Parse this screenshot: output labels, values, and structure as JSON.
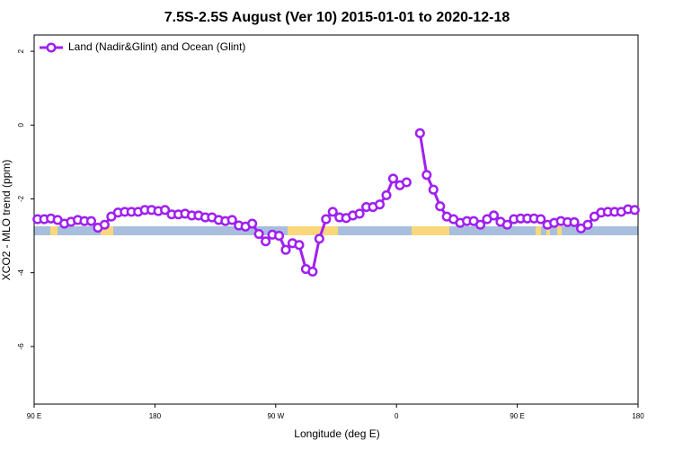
{
  "chart_data": {
    "type": "line",
    "title": "7.5S-2.5S August (Ver 10)   2015-01-01 to 2020-12-18",
    "x_label": "Longitude (deg E)",
    "y_label": "XCO2 - MLO trend (ppm)",
    "xlim": [
      90,
      540
    ],
    "xticks": [
      {
        "value": 90,
        "label": "90 E"
      },
      180,
      {
        "value": 270,
        "label": "90 W"
      },
      {
        "value": 360,
        "label": "0"
      },
      {
        "value": 450,
        "label": "90 E"
      },
      {
        "value": 540,
        "label": "180"
      }
    ],
    "ylim": [
      -7.56,
      2.44
    ],
    "yticks": [
      2,
      0,
      -2,
      -4,
      -6
    ],
    "legend": "top-left",
    "x": [
      92.5,
      97.5,
      102.5,
      107.5,
      112.5,
      117.5,
      122.5,
      127.5,
      132.5,
      137.5,
      142.5,
      147.5,
      152.5,
      157.5,
      162.5,
      167.5,
      172.5,
      177.5,
      182.5,
      187.5,
      192.5,
      197.5,
      202.5,
      207.5,
      212.5,
      217.5,
      222.5,
      227.5,
      232.5,
      237.5,
      242.5,
      247.5,
      252.5,
      257.5,
      262.5,
      267.5,
      272.5,
      277.5,
      282.5,
      287.5,
      292.5,
      297.5,
      302.5,
      307.5,
      312.5,
      317.5,
      322.5,
      327.5,
      332.5,
      337.5,
      342.5,
      347.5,
      352.5,
      357.5,
      362.5,
      367.5,
      372.5,
      377.5,
      382.5,
      387.5,
      392.5,
      397.5,
      402.5,
      407.5,
      412.5,
      417.5,
      422.5,
      427.5,
      432.5,
      437.5,
      442.5,
      447.5,
      452.5,
      457.5,
      462.5,
      467.5,
      472.5,
      477.5,
      482.5,
      487.5,
      492.5,
      497.5,
      502.5,
      507.5,
      512.5,
      517.5,
      522.5,
      527.5,
      532.5,
      537.5
    ],
    "series": [
      {
        "name": "Land (Nadir&Glint) and Ocean (Glint)",
        "color": "#a020f0",
        "values": [
          -2.55,
          -2.55,
          -2.53,
          -2.57,
          -2.67,
          -2.62,
          -2.57,
          -2.6,
          -2.6,
          -2.78,
          -2.7,
          -2.48,
          -2.37,
          -2.35,
          -2.35,
          -2.35,
          -2.3,
          -2.3,
          -2.33,
          -2.3,
          -2.42,
          -2.42,
          -2.4,
          -2.45,
          -2.45,
          -2.5,
          -2.5,
          -2.57,
          -2.6,
          -2.57,
          -2.72,
          -2.75,
          -2.67,
          -2.95,
          -3.15,
          -2.97,
          -3.0,
          -3.38,
          -3.2,
          -3.25,
          -3.9,
          -3.97,
          -3.08,
          -2.55,
          -2.35,
          -2.5,
          -2.52,
          -2.45,
          -2.4,
          -2.22,
          -2.22,
          -2.15,
          -1.9,
          -1.45,
          -1.63,
          -1.55,
          null,
          -0.22,
          -1.35,
          -1.75,
          -2.2,
          -2.48,
          -2.55,
          -2.65,
          -2.6,
          -2.6,
          -2.7,
          -2.55,
          -2.45,
          -2.62,
          -2.7,
          -2.55,
          -2.53,
          -2.53,
          -2.53,
          -2.55,
          -2.7,
          -2.65,
          -2.6,
          -2.63,
          -2.63,
          -2.8,
          -2.7,
          -2.48,
          -2.37,
          -2.35,
          -2.35,
          -2.35,
          -2.28,
          -2.3
        ]
      }
    ]
  }
}
